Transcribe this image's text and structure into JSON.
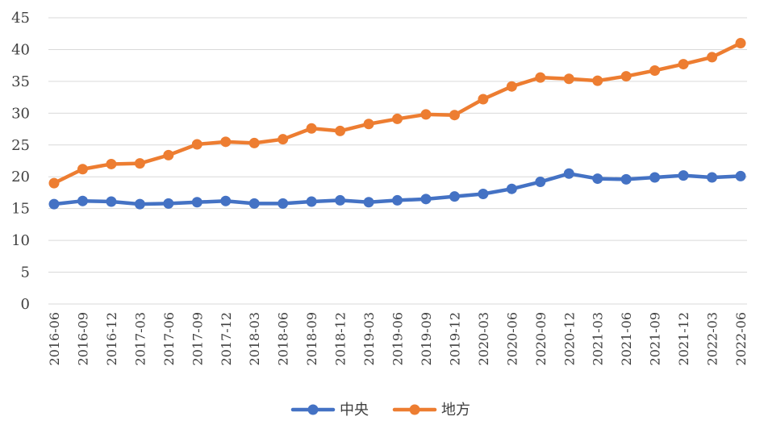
{
  "chart_data": {
    "type": "line",
    "title": "",
    "xlabel": "",
    "ylabel": "",
    "ylim": [
      0,
      45
    ],
    "y_ticks": [
      0,
      5,
      10,
      15,
      20,
      25,
      30,
      35,
      40,
      45
    ],
    "grid": "horizontal",
    "legend_position": "bottom",
    "categories": [
      "2016-06",
      "2016-09",
      "2016-12",
      "2017-03",
      "2017-06",
      "2017-09",
      "2017-12",
      "2018-03",
      "2018-06",
      "2018-09",
      "2018-12",
      "2019-03",
      "2019-06",
      "2019-09",
      "2019-12",
      "2020-03",
      "2020-06",
      "2020-09",
      "2020-12",
      "2021-03",
      "2021-06",
      "2021-09",
      "2021-12",
      "2022-03",
      "2022-06"
    ],
    "series": [
      {
        "name": "中央",
        "color": "#4472C4",
        "values": [
          15.7,
          16.2,
          16.1,
          15.7,
          15.8,
          16.0,
          16.2,
          15.8,
          15.8,
          16.1,
          16.3,
          16.0,
          16.3,
          16.5,
          16.9,
          17.3,
          18.1,
          19.2,
          20.5,
          19.7,
          19.6,
          19.9,
          20.2,
          19.9,
          20.1
        ]
      },
      {
        "name": "地方",
        "color": "#ED7D31",
        "values": [
          19.0,
          21.2,
          22.0,
          22.1,
          23.4,
          25.1,
          25.5,
          25.3,
          25.9,
          27.6,
          27.2,
          28.3,
          29.1,
          29.8,
          29.7,
          32.2,
          34.2,
          35.6,
          35.4,
          35.1,
          35.8,
          36.7,
          37.7,
          38.8,
          41.0
        ]
      }
    ]
  }
}
